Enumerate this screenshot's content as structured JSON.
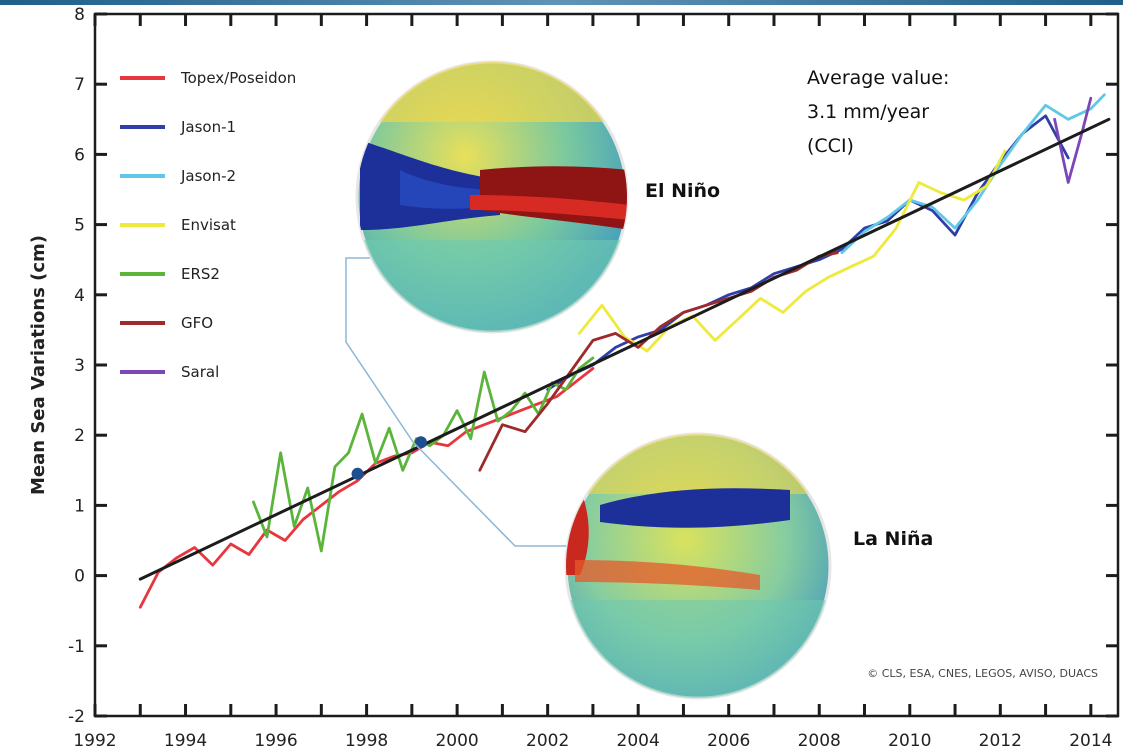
{
  "chart_data": {
    "type": "line",
    "title": "",
    "xlabel": "",
    "ylabel": "Mean Sea Variations (cm)",
    "xlim": [
      1992,
      2014.6
    ],
    "ylim": [
      -2,
      8
    ],
    "x_ticks": [
      1992,
      1994,
      1996,
      1998,
      2000,
      2002,
      2004,
      2006,
      2008,
      2010,
      2012,
      2014
    ],
    "y_ticks": [
      -2,
      -1,
      0,
      1,
      2,
      3,
      4,
      5,
      6,
      7,
      8
    ],
    "grid": false,
    "legend_position": "top-left",
    "series": [
      {
        "name": "Topex/Poseidon",
        "color": "#e8363f",
        "x": [
          1993.0,
          1993.4,
          1993.8,
          1994.2,
          1994.6,
          1995.0,
          1995.4,
          1995.8,
          1996.2,
          1996.6,
          1997.0,
          1997.4,
          1997.8,
          1998.2,
          1998.6,
          1999.0,
          1999.4,
          1999.8,
          2000.2,
          2000.6,
          2001.0,
          2001.4,
          2001.8,
          2002.2,
          2002.6,
          2003.0
        ],
        "y": [
          -0.45,
          0.05,
          0.25,
          0.4,
          0.15,
          0.45,
          0.3,
          0.65,
          0.5,
          0.8,
          1.0,
          1.2,
          1.35,
          1.6,
          1.7,
          1.75,
          1.9,
          1.85,
          2.05,
          2.15,
          2.25,
          2.35,
          2.45,
          2.55,
          2.75,
          2.95
        ]
      },
      {
        "name": "Jason-1",
        "color": "#2f3ea8",
        "x": [
          2002.0,
          2002.5,
          2003.0,
          2003.5,
          2004.0,
          2004.5,
          2005.0,
          2005.5,
          2006.0,
          2006.5,
          2007.0,
          2007.5,
          2008.0,
          2008.5,
          2009.0,
          2009.5,
          2010.0,
          2010.5,
          2011.0,
          2011.5,
          2012.0,
          2012.5,
          2013.0,
          2013.5
        ],
        "y": [
          2.65,
          2.85,
          3.0,
          3.25,
          3.4,
          3.5,
          3.75,
          3.85,
          4.0,
          4.1,
          4.3,
          4.4,
          4.5,
          4.65,
          4.95,
          5.05,
          5.35,
          5.2,
          4.85,
          5.45,
          5.9,
          6.3,
          6.55,
          5.95
        ]
      },
      {
        "name": "Jason-2",
        "color": "#5fc8e6",
        "x": [
          2008.5,
          2009.0,
          2009.5,
          2010.0,
          2010.5,
          2011.0,
          2011.5,
          2012.0,
          2012.5,
          2013.0,
          2013.5,
          2014.0,
          2014.3
        ],
        "y": [
          4.6,
          4.9,
          5.1,
          5.35,
          5.25,
          4.95,
          5.35,
          5.85,
          6.3,
          6.7,
          6.5,
          6.65,
          6.85
        ]
      },
      {
        "name": "Envisat",
        "color": "#eeea3c",
        "x": [
          2002.7,
          2003.2,
          2003.7,
          2004.2,
          2004.7,
          2005.2,
          2005.7,
          2006.2,
          2006.7,
          2007.2,
          2007.7,
          2008.2,
          2008.7,
          2009.2,
          2009.7,
          2010.2,
          2010.7,
          2011.2,
          2011.7,
          2012.1
        ],
        "y": [
          3.45,
          3.85,
          3.4,
          3.2,
          3.55,
          3.7,
          3.35,
          3.65,
          3.95,
          3.75,
          4.05,
          4.25,
          4.4,
          4.55,
          4.95,
          5.6,
          5.45,
          5.35,
          5.55,
          6.05
        ]
      },
      {
        "name": "ERS2",
        "color": "#5bb53a",
        "x": [
          1995.5,
          1995.8,
          1996.1,
          1996.4,
          1996.7,
          1997.0,
          1997.3,
          1997.6,
          1997.9,
          1998.2,
          1998.5,
          1998.8,
          1999.1,
          1999.4,
          1999.7,
          2000.0,
          2000.3,
          2000.6,
          2000.9,
          2001.2,
          2001.5,
          2001.8,
          2002.1,
          2002.4,
          2002.7,
          2003.0
        ],
        "y": [
          1.05,
          0.55,
          1.75,
          0.7,
          1.25,
          0.35,
          1.55,
          1.75,
          2.3,
          1.6,
          2.1,
          1.5,
          1.95,
          1.85,
          2.0,
          2.35,
          1.95,
          2.9,
          2.2,
          2.35,
          2.6,
          2.3,
          2.75,
          2.65,
          2.95,
          3.1
        ]
      },
      {
        "name": "GFO",
        "color": "#9e2a2b",
        "x": [
          2000.5,
          2001.0,
          2001.5,
          2002.0,
          2002.5,
          2003.0,
          2003.5,
          2004.0,
          2004.5,
          2005.0,
          2005.5,
          2006.0,
          2006.5,
          2007.0,
          2007.5,
          2008.0,
          2008.4
        ],
        "y": [
          1.5,
          2.15,
          2.05,
          2.45,
          2.9,
          3.35,
          3.45,
          3.25,
          3.55,
          3.75,
          3.85,
          3.95,
          4.05,
          4.25,
          4.35,
          4.55,
          4.6
        ]
      },
      {
        "name": "Saral",
        "color": "#7d46b8",
        "x": [
          2013.2,
          2013.5,
          2013.8,
          2014.0
        ],
        "y": [
          6.5,
          5.6,
          6.3,
          6.8
        ]
      },
      {
        "name": "",
        "color": "#1c1c1c",
        "x": [
          1993.0,
          2014.4
        ],
        "y": [
          -0.05,
          6.5
        ]
      }
    ],
    "markers": [
      {
        "x": 1997.8,
        "y": 1.45
      },
      {
        "x": 1999.2,
        "y": 1.9
      }
    ],
    "annotations": {
      "average_value": [
        "Average value:",
        "3.1 mm/year",
        "(CCI)"
      ],
      "el_nino": "El Niño",
      "la_nina": "La Niña",
      "credit": "© CLS, ESA, CNES, LEGOS, AVISO, DUACS"
    }
  }
}
